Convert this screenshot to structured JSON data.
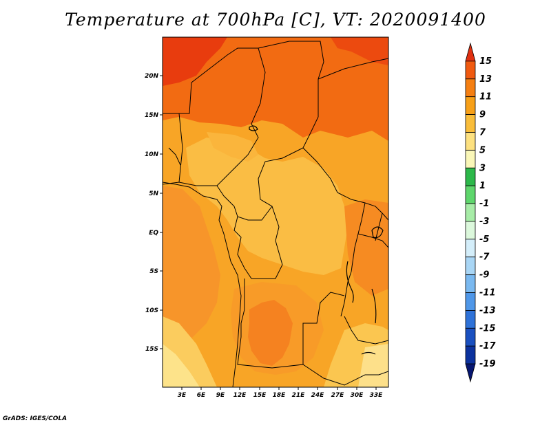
{
  "title": "Temperature at 700hPa [C], VT: 2020091400",
  "credit": "GrADS: IGES/COLA",
  "map": {
    "x_ticks": [
      "3E",
      "6E",
      "9E",
      "12E",
      "15E",
      "18E",
      "21E",
      "24E",
      "27E",
      "30E",
      "33E"
    ],
    "y_ticks": [
      "20N",
      "15N",
      "10N",
      "5N",
      "EQ",
      "5S",
      "10S",
      "15S"
    ]
  },
  "colorbar": {
    "labels": [
      "15",
      "13",
      "11",
      "9",
      "7",
      "5",
      "3",
      "1",
      "-1",
      "-3",
      "-5",
      "-7",
      "-9",
      "-11",
      "-13",
      "-15",
      "-17",
      "-19"
    ],
    "colors": [
      "#e03010",
      "#f05a10",
      "#f57f12",
      "#f7a018",
      "#f9bd3a",
      "#fde180",
      "#faf7b8",
      "#2cb84a",
      "#5ed66c",
      "#a7eca7",
      "#dcf8dc",
      "#d4eefa",
      "#a9d6f5",
      "#7ab9f0",
      "#4f97e8",
      "#2e72d8",
      "#1a50c0",
      "#0c329e",
      "#061670"
    ]
  },
  "colors": {
    "warm_max": "#ea3a0d",
    "warm_high": "#f26a12",
    "warm_mid": "#f7a32a",
    "warm_low": "#fac04a",
    "cool_edge": "#fde38a"
  }
}
